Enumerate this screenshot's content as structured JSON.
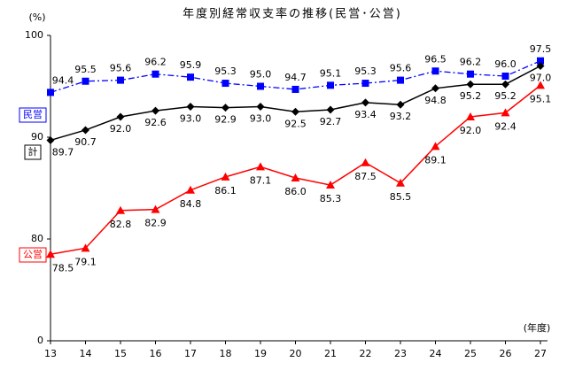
{
  "chart_data": {
    "type": "line",
    "title": "年度別経常収支率の推移(民営･公営)",
    "y_label": "(%)",
    "x_label": "(年度)",
    "categories": [
      "13",
      "14",
      "15",
      "16",
      "17",
      "18",
      "19",
      "20",
      "21",
      "22",
      "23",
      "24",
      "25",
      "26",
      "27"
    ],
    "ylim": [
      70,
      100
    ],
    "yticks": [
      {
        "value": 70,
        "label": "0"
      },
      80,
      90,
      100
    ],
    "series": [
      {
        "name": "民営",
        "color": "#0000ff",
        "marker": "square",
        "dash": "dashdot",
        "values": [
          94.4,
          95.5,
          95.6,
          96.2,
          95.9,
          95.3,
          95.0,
          94.7,
          95.1,
          95.3,
          95.6,
          96.5,
          96.2,
          96.0,
          97.5
        ],
        "value_labels": [
          "94.4",
          "95.5",
          "95.6",
          "96.2",
          "95.9",
          "95.3",
          "95.0",
          "94.7",
          "95.1",
          "95.3",
          "95.6",
          "96.5",
          "96.2",
          "96.0",
          "97.5"
        ]
      },
      {
        "name": "計",
        "color": "#000000",
        "marker": "diamond",
        "dash": "solid",
        "values": [
          89.7,
          90.7,
          92.0,
          92.6,
          93.0,
          92.9,
          93.0,
          92.5,
          92.7,
          93.4,
          93.2,
          94.8,
          95.2,
          95.2,
          97.0
        ],
        "value_labels": [
          "89.7",
          "90.7",
          "92.0",
          "92.6",
          "93.0",
          "92.9",
          "93.0",
          "92.5",
          "92.7",
          "93.4",
          "93.2",
          "94.8",
          "95.2",
          "95.2",
          "97.0"
        ]
      },
      {
        "name": "公営",
        "color": "#ff0000",
        "marker": "triangle",
        "dash": "solid",
        "values": [
          78.5,
          79.1,
          82.8,
          82.9,
          84.8,
          86.1,
          87.1,
          86.0,
          85.3,
          87.5,
          85.5,
          89.1,
          92.0,
          92.4,
          95.1
        ],
        "value_labels": [
          "78.5",
          "79.1",
          "82.8",
          "82.9",
          "84.8",
          "86.1",
          "87.1",
          "86.0",
          "85.3",
          "87.5",
          "85.5",
          "89.1",
          "92.0",
          "92.4",
          "95.1"
        ]
      }
    ]
  }
}
